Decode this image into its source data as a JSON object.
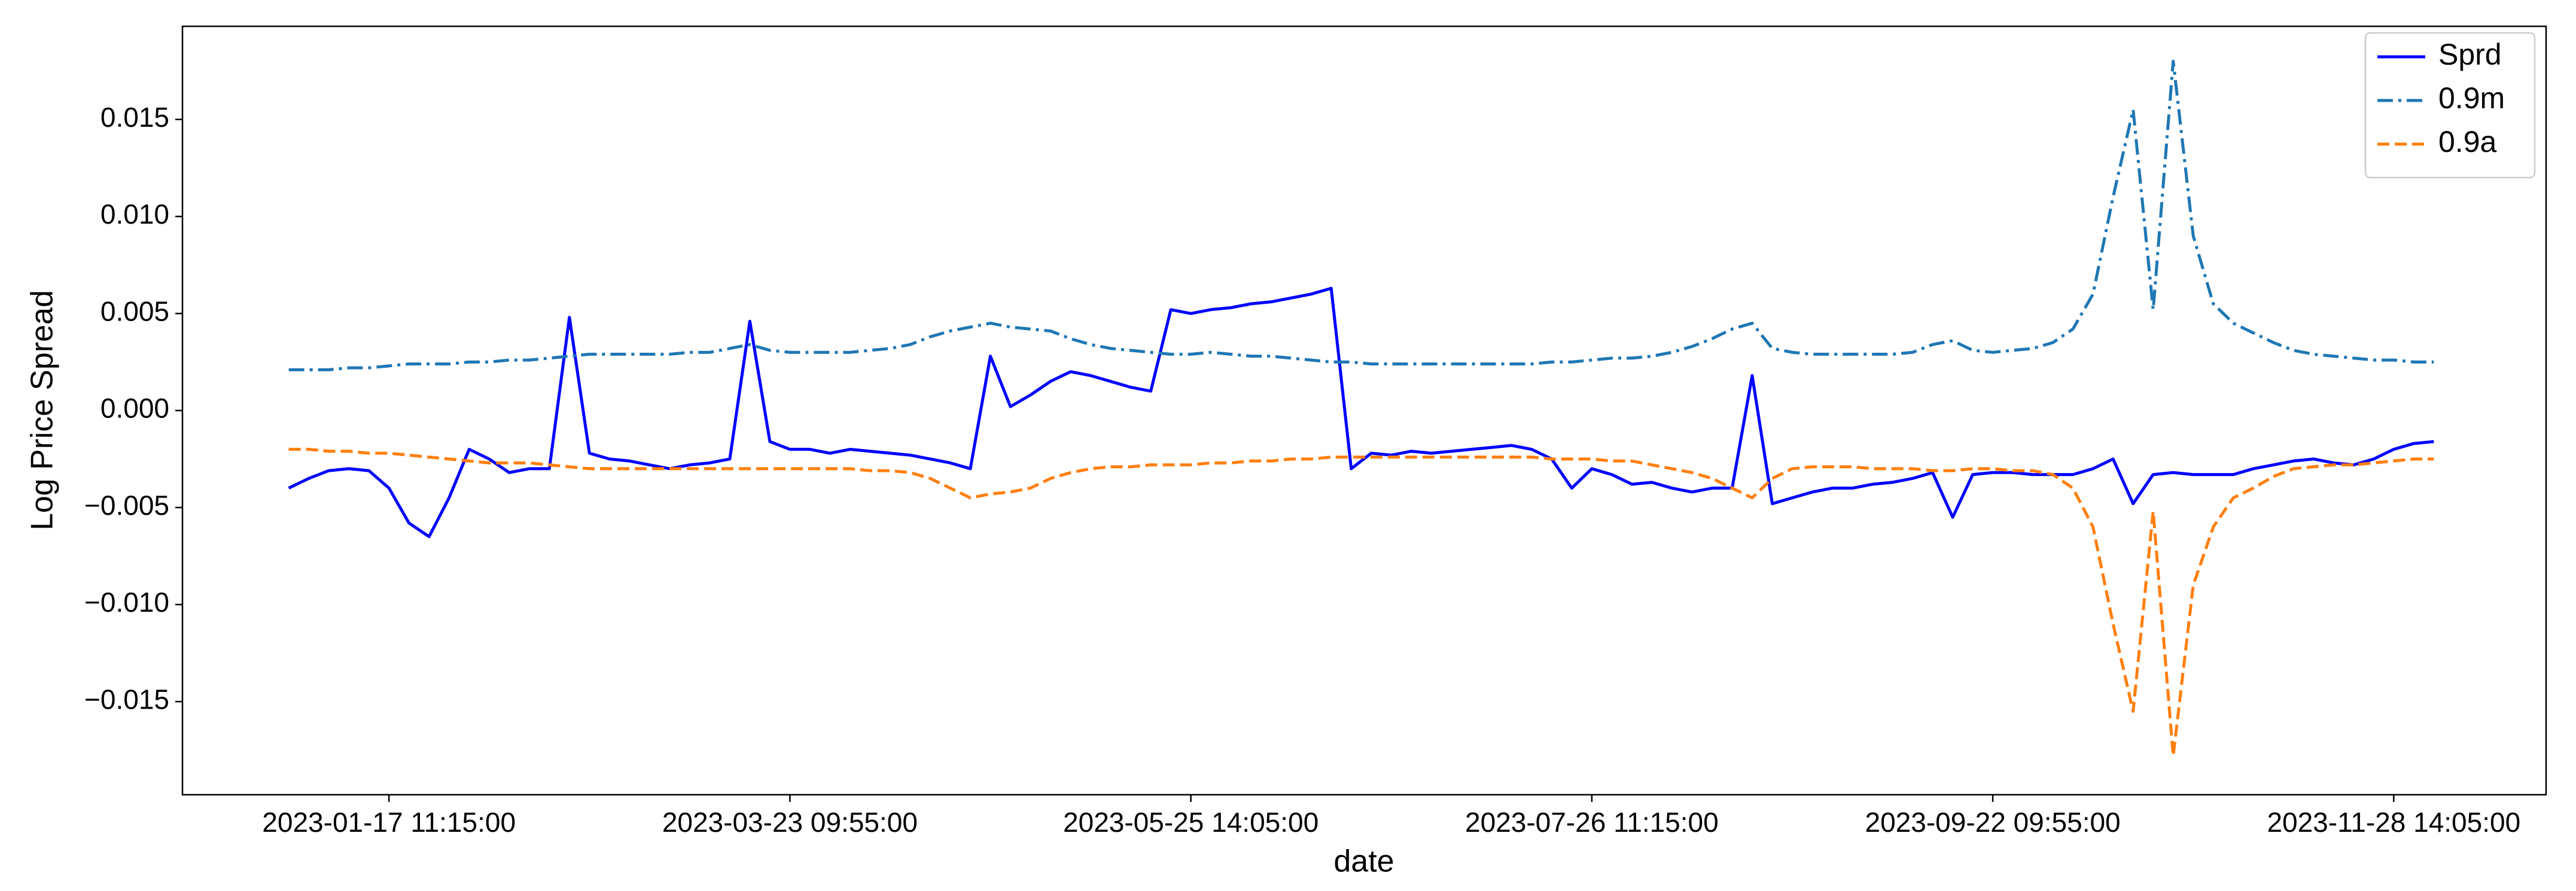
{
  "chart_data": {
    "type": "line",
    "x_label": "date",
    "y_label": "Log Price Spread",
    "categories": [
      null,
      null,
      null,
      null,
      null,
      "2023-01-17 11:15:00",
      null,
      null,
      null,
      null,
      null,
      null,
      null,
      null,
      null,
      null,
      null,
      null,
      null,
      null,
      null,
      null,
      null,
      null,
      null,
      "2023-03-23 09:55:00",
      null,
      null,
      null,
      null,
      null,
      null,
      null,
      null,
      null,
      null,
      null,
      null,
      null,
      null,
      null,
      null,
      null,
      null,
      null,
      "2023-05-25 14:05:00",
      null,
      null,
      null,
      null,
      null,
      null,
      null,
      null,
      null,
      null,
      null,
      null,
      null,
      null,
      null,
      null,
      null,
      null,
      null,
      "2023-07-26 11:15:00",
      null,
      null,
      null,
      null,
      null,
      null,
      null,
      null,
      null,
      null,
      null,
      null,
      null,
      null,
      null,
      null,
      null,
      null,
      null,
      "2023-09-22 09:55:00",
      null,
      null,
      null,
      null,
      null,
      null,
      null,
      null,
      null,
      null,
      null,
      null,
      null,
      null,
      null,
      null,
      null,
      null,
      null,
      "2023-11-28 14:05:00",
      null,
      null
    ],
    "series": [
      {
        "name": "Sprd",
        "color": "#0000ff",
        "dash": "solid",
        "values": [
          -0.004,
          -0.0035,
          -0.0031,
          -0.003,
          -0.0031,
          -0.004,
          -0.0058,
          -0.0065,
          -0.0045,
          -0.002,
          -0.0025,
          -0.0032,
          -0.003,
          -0.003,
          0.0048,
          -0.0022,
          -0.0025,
          -0.0026,
          -0.0028,
          -0.003,
          -0.0028,
          -0.0027,
          -0.0025,
          0.0046,
          -0.0016,
          -0.002,
          -0.002,
          -0.0022,
          -0.002,
          -0.0021,
          -0.0022,
          -0.0023,
          -0.0025,
          -0.0027,
          -0.003,
          0.0028,
          0.0002,
          0.0008,
          0.0015,
          0.002,
          0.0018,
          0.0015,
          0.0012,
          0.001,
          0.0052,
          0.005,
          0.0052,
          0.0053,
          0.0055,
          0.0056,
          0.0058,
          0.006,
          0.0063,
          -0.003,
          -0.0022,
          -0.0023,
          -0.0021,
          -0.0022,
          -0.0021,
          -0.002,
          -0.0019,
          -0.0018,
          -0.002,
          -0.0025,
          -0.004,
          -0.003,
          -0.0033,
          -0.0038,
          -0.0037,
          -0.004,
          -0.0042,
          -0.004,
          -0.004,
          0.0018,
          -0.0048,
          -0.0045,
          -0.0042,
          -0.004,
          -0.004,
          -0.0038,
          -0.0037,
          -0.0035,
          -0.0032,
          -0.0055,
          -0.0033,
          -0.0032,
          -0.0032,
          -0.0033,
          -0.0033,
          -0.0033,
          -0.003,
          -0.0025,
          -0.0048,
          -0.0033,
          -0.0032,
          -0.0033,
          -0.0033,
          -0.0033,
          -0.003,
          -0.0028,
          -0.0026,
          -0.0025,
          -0.0027,
          -0.0028,
          -0.0025,
          -0.002,
          -0.0017,
          -0.0016
        ]
      },
      {
        "name": "0.9m",
        "color": "#1f77b4",
        "dash": "dashdot",
        "values": [
          0.0021,
          0.0021,
          0.0021,
          0.0022,
          0.0022,
          0.0023,
          0.0024,
          0.0024,
          0.0024,
          0.0025,
          0.0025,
          0.0026,
          0.0026,
          0.0027,
          0.0028,
          0.0029,
          0.0029,
          0.0029,
          0.0029,
          0.0029,
          0.003,
          0.003,
          0.0032,
          0.0034,
          0.0031,
          0.003,
          0.003,
          0.003,
          0.003,
          0.0031,
          0.0032,
          0.0034,
          0.0038,
          0.0041,
          0.0043,
          0.0045,
          0.0043,
          0.0042,
          0.0041,
          0.0037,
          0.0034,
          0.0032,
          0.0031,
          0.003,
          0.0029,
          0.0029,
          0.003,
          0.0029,
          0.0028,
          0.0028,
          0.0027,
          0.0026,
          0.0025,
          0.0025,
          0.0024,
          0.0024,
          0.0024,
          0.0024,
          0.0024,
          0.0024,
          0.0024,
          0.0024,
          0.0024,
          0.0025,
          0.0025,
          0.0026,
          0.0027,
          0.0027,
          0.0028,
          0.003,
          0.0033,
          0.0037,
          0.0042,
          0.0045,
          0.0032,
          0.003,
          0.0029,
          0.0029,
          0.0029,
          0.0029,
          0.0029,
          0.003,
          0.0034,
          0.0036,
          0.0031,
          0.003,
          0.0031,
          0.0032,
          0.0035,
          0.0042,
          0.006,
          0.011,
          0.0155,
          0.0052,
          0.018,
          0.009,
          0.0055,
          0.0045,
          0.004,
          0.0035,
          0.0031,
          0.0029,
          0.0028,
          0.0027,
          0.0026,
          0.0026,
          0.0025,
          0.0025
        ]
      },
      {
        "name": "0.9a",
        "color": "#ff7f0e",
        "dash": "dashed",
        "values": [
          -0.002,
          -0.002,
          -0.0021,
          -0.0021,
          -0.0022,
          -0.0022,
          -0.0023,
          -0.0024,
          -0.0025,
          -0.0026,
          -0.0027,
          -0.0027,
          -0.0027,
          -0.0028,
          -0.0029,
          -0.003,
          -0.003,
          -0.003,
          -0.003,
          -0.003,
          -0.003,
          -0.003,
          -0.003,
          -0.003,
          -0.003,
          -0.003,
          -0.003,
          -0.003,
          -0.003,
          -0.0031,
          -0.0031,
          -0.0032,
          -0.0035,
          -0.004,
          -0.0045,
          -0.0043,
          -0.0042,
          -0.004,
          -0.0035,
          -0.0032,
          -0.003,
          -0.0029,
          -0.0029,
          -0.0028,
          -0.0028,
          -0.0028,
          -0.0027,
          -0.0027,
          -0.0026,
          -0.0026,
          -0.0025,
          -0.0025,
          -0.0024,
          -0.0024,
          -0.0024,
          -0.0024,
          -0.0024,
          -0.0024,
          -0.0024,
          -0.0024,
          -0.0024,
          -0.0024,
          -0.0024,
          -0.0025,
          -0.0025,
          -0.0025,
          -0.0026,
          -0.0026,
          -0.0028,
          -0.003,
          -0.0032,
          -0.0035,
          -0.004,
          -0.0045,
          -0.0035,
          -0.003,
          -0.0029,
          -0.0029,
          -0.0029,
          -0.003,
          -0.003,
          -0.003,
          -0.0031,
          -0.0031,
          -0.003,
          -0.003,
          -0.0031,
          -0.0031,
          -0.0033,
          -0.004,
          -0.006,
          -0.011,
          -0.0155,
          -0.0052,
          -0.0178,
          -0.009,
          -0.006,
          -0.0045,
          -0.004,
          -0.0034,
          -0.003,
          -0.0029,
          -0.0028,
          -0.0028,
          -0.0027,
          -0.0026,
          -0.0025,
          -0.0025
        ]
      }
    ],
    "xlim": [
      -5.3,
      112.6
    ],
    "ylim": [
      -0.0198,
      0.0198
    ],
    "yticks": [
      0.015,
      {
        "value": 0.01,
        "label": "0.010"
      },
      0.005,
      {
        "value": 0,
        "label": "0.000"
      },
      {
        "value": -0.005,
        "label": "−0.005"
      },
      {
        "value": -0.01,
        "label": "−0.010"
      },
      {
        "value": -0.015,
        "label": "−0.015"
      }
    ],
    "grid": false,
    "legend": "upper right"
  }
}
